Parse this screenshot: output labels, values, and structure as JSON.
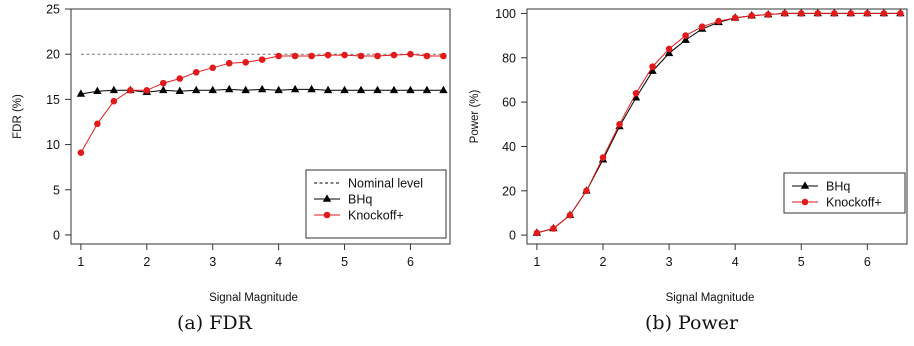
{
  "captions": {
    "a": "(a) FDR",
    "b": "(b) Power"
  },
  "colors": {
    "bhq": "#000000",
    "knockoff": "#e31a1c",
    "nominal": "#777777",
    "axis": "#333333"
  },
  "chart_data": [
    {
      "type": "line",
      "title": "",
      "xlabel": "Signal Magnitude",
      "ylabel": "FDR (%)",
      "xlim": [
        0.85,
        6.6
      ],
      "ylim": [
        -1,
        25
      ],
      "xticks": [
        1,
        2,
        3,
        4,
        5,
        6
      ],
      "yticks": [
        0,
        5,
        10,
        15,
        20,
        25
      ],
      "grid": false,
      "legend_position": "bottom-right",
      "x": [
        1,
        1.25,
        1.5,
        1.75,
        2,
        2.25,
        2.5,
        2.75,
        3,
        3.25,
        3.5,
        3.75,
        4,
        4.25,
        4.5,
        4.75,
        5,
        5.25,
        5.5,
        5.75,
        6,
        6.25,
        6.5
      ],
      "reference_line": {
        "name": "Nominal level",
        "y": 20,
        "style": "dashed"
      },
      "series": [
        {
          "name": "BHq",
          "marker": "triangle",
          "values": [
            15.6,
            15.9,
            16.0,
            16.0,
            15.8,
            16.0,
            15.9,
            16.0,
            16.0,
            16.1,
            16.0,
            16.1,
            16.0,
            16.1,
            16.1,
            16.0,
            16.0,
            16.0,
            16.0,
            16.0,
            16.0,
            16.0,
            16.0
          ]
        },
        {
          "name": "Knockoff+",
          "marker": "circle",
          "values": [
            9.1,
            12.3,
            14.8,
            16.0,
            16.0,
            16.8,
            17.3,
            18.0,
            18.5,
            19.0,
            19.1,
            19.4,
            19.8,
            19.8,
            19.8,
            19.9,
            19.9,
            19.8,
            19.8,
            19.9,
            20.0,
            19.8,
            19.8
          ]
        }
      ]
    },
    {
      "type": "line",
      "title": "",
      "xlabel": "Signal Magnitude",
      "ylabel": "Power (%)",
      "xlim": [
        0.85,
        6.6
      ],
      "ylim": [
        -4,
        102
      ],
      "xticks": [
        1,
        2,
        3,
        4,
        5,
        6
      ],
      "yticks": [
        0,
        20,
        40,
        60,
        80,
        100
      ],
      "grid": false,
      "legend_position": "right",
      "x": [
        1,
        1.25,
        1.5,
        1.75,
        2,
        2.25,
        2.5,
        2.75,
        3,
        3.25,
        3.5,
        3.75,
        4,
        4.25,
        4.5,
        4.75,
        5,
        5.25,
        5.5,
        5.75,
        6,
        6.25,
        6.5
      ],
      "series": [
        {
          "name": "BHq",
          "marker": "triangle",
          "values": [
            1,
            3,
            9,
            20,
            34,
            49,
            62,
            74,
            82,
            88,
            93,
            96,
            98,
            99,
            99.5,
            100,
            100,
            100,
            100,
            100,
            100,
            100,
            100
          ]
        },
        {
          "name": "Knockoff+",
          "marker": "circle",
          "values": [
            1,
            3,
            9,
            20,
            35,
            50,
            64,
            76,
            84,
            90,
            94,
            96.5,
            98,
            99,
            99.5,
            100,
            100,
            100,
            100,
            100,
            100,
            100,
            100
          ]
        }
      ]
    }
  ]
}
